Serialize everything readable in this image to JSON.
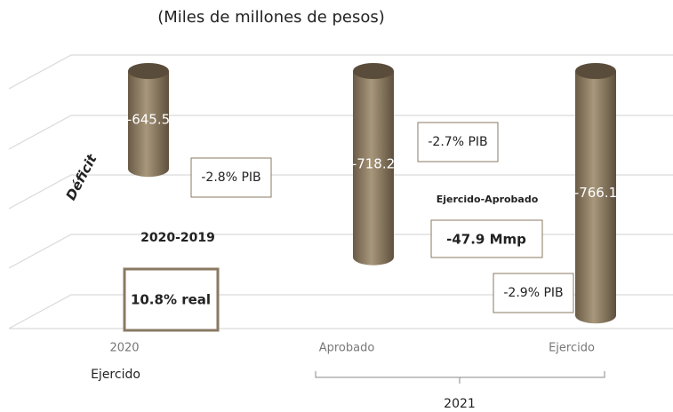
{
  "chart_data": {
    "type": "cylinder",
    "subtitle": "(Miles de millones de pesos)",
    "y_label": "Déficit",
    "categories": [
      "2020",
      "Aprobado",
      "Ejercido"
    ],
    "groups": [
      {
        "label": "Ejercido"
      },
      {
        "label": "2021"
      }
    ],
    "values": [
      -645.5,
      -718.2,
      -766.1
    ],
    "color": "#7d6d55",
    "ylim": [
      -790,
      -565
    ],
    "annotations": [
      "-2.8% PIB",
      "-2.7% PIB",
      "-2.9% PIB",
      "2020-2019",
      "10.8% real",
      "Ejercido-Aprobado",
      "-47.9 Mmp"
    ]
  }
}
